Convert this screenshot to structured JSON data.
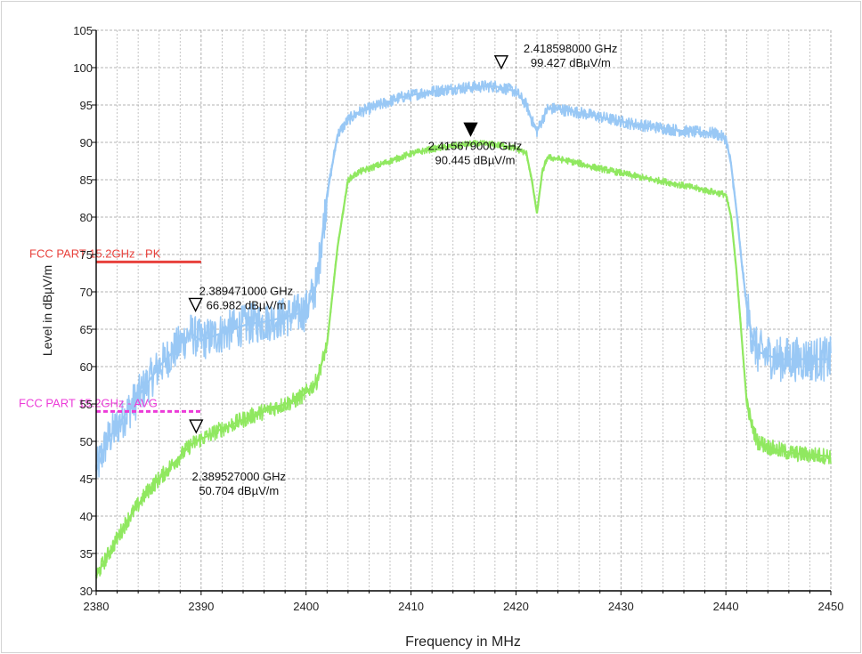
{
  "chart_data": {
    "type": "line",
    "xlabel": "Frequency in MHz",
    "ylabel": "Level in dBµV/m",
    "xlim": [
      2380,
      2450
    ],
    "ylim": [
      30,
      105
    ],
    "x_ticks": [
      2380,
      2390,
      2400,
      2410,
      2420,
      2430,
      2440,
      2450
    ],
    "y_ticks": [
      30,
      35,
      40,
      45,
      50,
      55,
      60,
      65,
      70,
      75,
      80,
      85,
      90,
      95,
      100,
      105
    ],
    "grid": true,
    "series": [
      {
        "color": "#99c8f5",
        "x": [
          2380,
          2381,
          2382,
          2383,
          2384,
          2385,
          2386,
          2387,
          2388,
          2389,
          2390,
          2391,
          2392,
          2393,
          2394,
          2395,
          2396,
          2397,
          2398,
          2399,
          2400,
          2401,
          2402,
          2403,
          2404,
          2405,
          2406,
          2407,
          2408,
          2409,
          2410,
          2411,
          2412,
          2413,
          2414,
          2415,
          2416,
          2417,
          2418,
          2419,
          2420,
          2421,
          2421.5,
          2422,
          2422.5,
          2423,
          2424,
          2425,
          2426,
          2427,
          2428,
          2429,
          2430,
          2431,
          2432,
          2433,
          2434,
          2435,
          2436,
          2437,
          2438,
          2439,
          2440,
          2440.5,
          2441,
          2441.5,
          2442,
          2442.5,
          2443,
          2444,
          2445,
          2446,
          2447,
          2448,
          2449,
          2450
        ],
        "values": [
          46,
          50,
          52,
          54,
          56,
          58,
          60,
          61.5,
          63,
          64.5,
          63.5,
          64,
          64.5,
          65,
          65.5,
          65.8,
          66,
          66.3,
          66.6,
          67,
          67.5,
          71,
          83,
          91,
          93,
          94,
          94.5,
          95,
          95.5,
          96,
          96.3,
          96.6,
          96.8,
          97,
          97.2,
          97.3,
          97.4,
          97.5,
          97.5,
          97.2,
          96.8,
          95,
          93,
          91.5,
          93,
          94.5,
          94.5,
          94.2,
          94,
          93.7,
          93.4,
          93.1,
          92.8,
          92.5,
          92.3,
          92.1,
          91.9,
          91.7,
          91.5,
          91.4,
          91.3,
          91.2,
          90.5,
          87,
          81,
          74,
          68,
          64,
          62,
          61.5,
          61,
          61,
          61,
          61,
          61,
          61
        ]
      },
      {
        "color": "#90e860",
        "x": [
          2380,
          2381,
          2382,
          2383,
          2384,
          2385,
          2386,
          2387,
          2388,
          2389,
          2390,
          2391,
          2392,
          2393,
          2394,
          2395,
          2396,
          2397,
          2398,
          2399,
          2400,
          2401,
          2402,
          2403,
          2404,
          2405,
          2406,
          2407,
          2408,
          2409,
          2410,
          2411,
          2412,
          2413,
          2414,
          2415,
          2416,
          2417,
          2418,
          2419,
          2420,
          2421,
          2421.5,
          2422,
          2422.5,
          2423,
          2424,
          2425,
          2426,
          2427,
          2428,
          2429,
          2430,
          2431,
          2432,
          2433,
          2434,
          2435,
          2436,
          2437,
          2438,
          2439,
          2440,
          2440.5,
          2441,
          2441.5,
          2442,
          2442.5,
          2443,
          2444,
          2445,
          2446,
          2447,
          2448,
          2449,
          2450
        ],
        "values": [
          32,
          34.5,
          37,
          39.5,
          41.5,
          43.5,
          45,
          46.5,
          48,
          49.5,
          50.3,
          51,
          51.7,
          52.3,
          52.9,
          53.5,
          54,
          54.5,
          55,
          55.5,
          56.5,
          58,
          63,
          76,
          85,
          86,
          86.5,
          87,
          87.5,
          88,
          88.5,
          88.8,
          89.1,
          89.3,
          89.5,
          89.7,
          89.8,
          89.8,
          89.7,
          89.5,
          89.2,
          88.5,
          85,
          80.5,
          86,
          88,
          87.8,
          87.5,
          87.2,
          86.8,
          86.5,
          86.2,
          85.9,
          85.6,
          85.3,
          85,
          84.8,
          84.5,
          84.2,
          83.9,
          83.6,
          83.3,
          83,
          80,
          73,
          64,
          55,
          52,
          50,
          49.3,
          48.8,
          48.5,
          48.3,
          48.2,
          48.1,
          48
        ]
      }
    ],
    "limit_lines": [
      {
        "label": "FCC PART 15.2GHz - PK",
        "value": 74,
        "x_range": [
          2380,
          2390
        ],
        "color": "#e8413c",
        "style": "solid"
      },
      {
        "label": "FCC PART 15.2GHz - AVG",
        "value": 54,
        "x_range": [
          2380,
          2390
        ],
        "color": "#ec3bd8",
        "style": "dotted"
      }
    ],
    "markers": [
      {
        "x": 2418.598,
        "y": 99.427,
        "filled": false,
        "freq": "2.418598000 GHz",
        "level": "99.427 dBµV/m"
      },
      {
        "x": 2415.679,
        "y": 90.445,
        "filled": true,
        "freq": "2.415679000 GHz",
        "level": "90.445 dBµV/m"
      },
      {
        "x": 2389.471,
        "y": 66.982,
        "filled": false,
        "freq": "2.389471000 GHz",
        "level": "66.982 dBµV/m"
      },
      {
        "x": 2389.527,
        "y": 50.704,
        "filled": false,
        "freq": "2.389527000 GHz",
        "level": "50.704 dBµV/m"
      }
    ]
  }
}
